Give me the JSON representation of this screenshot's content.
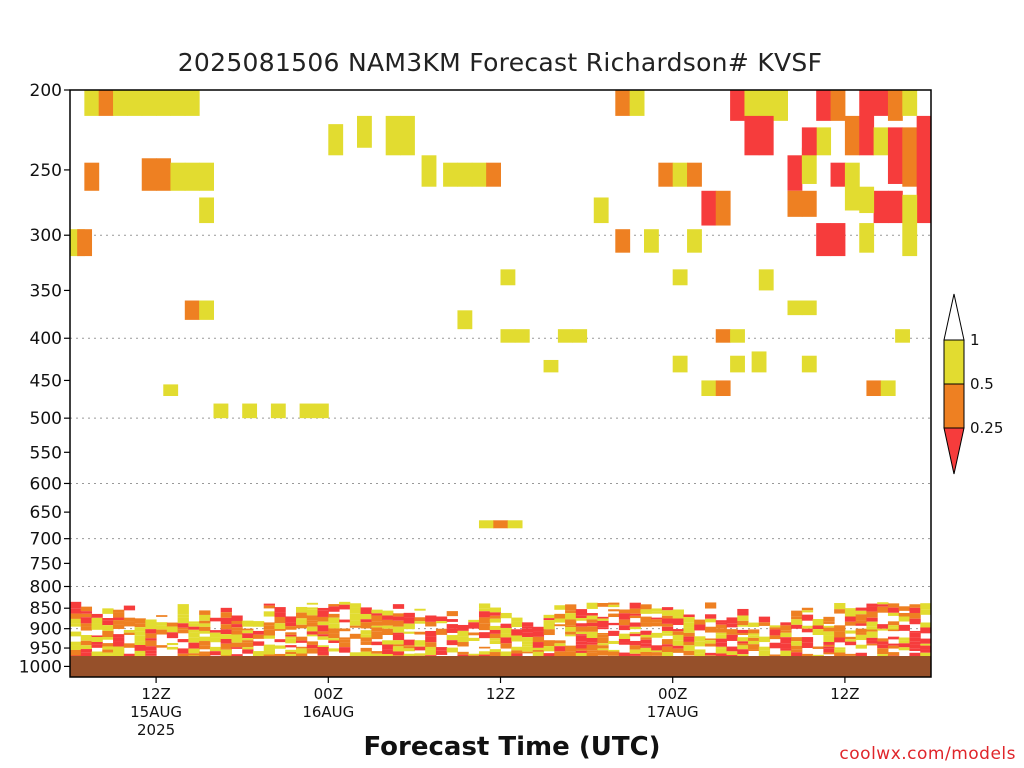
{
  "header": {
    "title": "2025081506 NAM3KM Forecast Richardson# KVSF",
    "xlabel": "Forecast Time (UTC)",
    "credit": "coolwx.com/models"
  },
  "chart_data": {
    "type": "heatmap",
    "title": "2025081506 NAM3KM Forecast Richardson# KVSF",
    "xlabel": "Forecast Time (UTC)",
    "ylabel": "",
    "y_ticks": [
      200,
      250,
      300,
      350,
      400,
      450,
      500,
      550,
      600,
      650,
      700,
      750,
      800,
      850,
      900,
      950,
      1000
    ],
    "y_gridlines": [
      300,
      400,
      500,
      600,
      700,
      800,
      900,
      1000
    ],
    "y_range": [
      200,
      1030
    ],
    "y_scale": "log (pressure, inverted)",
    "x_range_hours": [
      0,
      60
    ],
    "x_ticks": [
      {
        "hour": 6,
        "labels": [
          "12Z",
          "15AUG",
          "2025"
        ]
      },
      {
        "hour": 18,
        "labels": [
          "00Z",
          "16AUG"
        ]
      },
      {
        "hour": 30,
        "labels": [
          "12Z"
        ]
      },
      {
        "hour": 42,
        "labels": [
          "00Z",
          "17AUG"
        ]
      },
      {
        "hour": 54,
        "labels": [
          "12Z"
        ]
      }
    ],
    "ground_color": "#96502a",
    "colorbar": {
      "levels": [
        "1",
        "0.5",
        "0.25"
      ],
      "bands": [
        {
          "range": "< 0.25",
          "color": "#f63c3c"
        },
        {
          "range": "0.25 - 0.5",
          "color": "#ee8022"
        },
        {
          "range": "0.5 - 1",
          "color": "#e2dc30"
        },
        {
          "range": "> 1",
          "color": "#ffffff"
        }
      ]
    },
    "categories_legend": {
      "Y": "0.5-1",
      "O": "0.25-0.5",
      "R": "<0.25"
    },
    "cells": [
      {
        "h": 1.5,
        "p1": 200,
        "p2": 215,
        "c": "Y"
      },
      {
        "h": 2.5,
        "p1": 200,
        "p2": 215,
        "c": "O"
      },
      {
        "h": 3.5,
        "p1": 200,
        "p2": 215,
        "c": "Y"
      },
      {
        "h": 4.5,
        "p1": 200,
        "p2": 215,
        "c": "Y"
      },
      {
        "h": 5.5,
        "p1": 200,
        "p2": 215,
        "c": "Y"
      },
      {
        "h": 6.5,
        "p1": 200,
        "p2": 215,
        "c": "Y"
      },
      {
        "h": 7.5,
        "p1": 200,
        "p2": 215,
        "c": "Y"
      },
      {
        "h": 8.5,
        "p1": 200,
        "p2": 215,
        "c": "Y"
      },
      {
        "h": 1.5,
        "p1": 245,
        "p2": 265,
        "c": "O"
      },
      {
        "h": 5.5,
        "p1": 242,
        "p2": 265,
        "c": "O"
      },
      {
        "h": 6.5,
        "p1": 242,
        "p2": 265,
        "c": "O"
      },
      {
        "h": 7.5,
        "p1": 245,
        "p2": 265,
        "c": "Y"
      },
      {
        "h": 8.5,
        "p1": 245,
        "p2": 265,
        "c": "Y"
      },
      {
        "h": 9.5,
        "p1": 245,
        "p2": 265,
        "c": "Y"
      },
      {
        "h": 9.5,
        "p1": 270,
        "p2": 290,
        "c": "Y"
      },
      {
        "h": 0.5,
        "p1": 295,
        "p2": 318,
        "c": "Y"
      },
      {
        "h": 1.0,
        "p1": 295,
        "p2": 318,
        "c": "O"
      },
      {
        "h": 8.5,
        "p1": 360,
        "p2": 380,
        "c": "O"
      },
      {
        "h": 9.5,
        "p1": 360,
        "p2": 380,
        "c": "Y"
      },
      {
        "h": 7.0,
        "p1": 455,
        "p2": 470,
        "c": "Y"
      },
      {
        "h": 10.5,
        "p1": 480,
        "p2": 500,
        "c": "Y"
      },
      {
        "h": 12.5,
        "p1": 480,
        "p2": 500,
        "c": "Y"
      },
      {
        "h": 14.5,
        "p1": 480,
        "p2": 500,
        "c": "Y"
      },
      {
        "h": 16.5,
        "p1": 480,
        "p2": 500,
        "c": "Y"
      },
      {
        "h": 17.5,
        "p1": 480,
        "p2": 500,
        "c": "Y"
      },
      {
        "h": 18.5,
        "p1": 220,
        "p2": 240,
        "c": "Y"
      },
      {
        "h": 20.5,
        "p1": 215,
        "p2": 235,
        "c": "Y"
      },
      {
        "h": 22.5,
        "p1": 215,
        "p2": 240,
        "c": "Y"
      },
      {
        "h": 23.5,
        "p1": 215,
        "p2": 240,
        "c": "Y"
      },
      {
        "h": 25.0,
        "p1": 240,
        "p2": 262,
        "c": "Y"
      },
      {
        "h": 26.5,
        "p1": 245,
        "p2": 262,
        "c": "Y"
      },
      {
        "h": 27.5,
        "p1": 245,
        "p2": 262,
        "c": "Y"
      },
      {
        "h": 28.5,
        "p1": 245,
        "p2": 262,
        "c": "Y"
      },
      {
        "h": 29.5,
        "p1": 245,
        "p2": 262,
        "c": "O"
      },
      {
        "h": 27.5,
        "p1": 370,
        "p2": 390,
        "c": "Y"
      },
      {
        "h": 30.5,
        "p1": 330,
        "p2": 345,
        "c": "Y"
      },
      {
        "h": 30.5,
        "p1": 390,
        "p2": 405,
        "c": "Y"
      },
      {
        "h": 31.5,
        "p1": 390,
        "p2": 405,
        "c": "Y"
      },
      {
        "h": 33.5,
        "p1": 425,
        "p2": 440,
        "c": "Y"
      },
      {
        "h": 34.5,
        "p1": 390,
        "p2": 405,
        "c": "Y"
      },
      {
        "h": 35.5,
        "p1": 390,
        "p2": 405,
        "c": "Y"
      },
      {
        "h": 29.0,
        "p1": 665,
        "p2": 680,
        "c": "Y"
      },
      {
        "h": 30.0,
        "p1": 665,
        "p2": 680,
        "c": "O"
      },
      {
        "h": 31.0,
        "p1": 665,
        "p2": 680,
        "c": "Y"
      },
      {
        "h": 37.0,
        "p1": 270,
        "p2": 290,
        "c": "Y"
      },
      {
        "h": 38.5,
        "p1": 200,
        "p2": 215,
        "c": "O"
      },
      {
        "h": 39.5,
        "p1": 200,
        "p2": 215,
        "c": "Y"
      },
      {
        "h": 38.5,
        "p1": 295,
        "p2": 315,
        "c": "O"
      },
      {
        "h": 40.5,
        "p1": 295,
        "p2": 315,
        "c": "Y"
      },
      {
        "h": 41.5,
        "p1": 245,
        "p2": 262,
        "c": "O"
      },
      {
        "h": 42.5,
        "p1": 245,
        "p2": 262,
        "c": "Y"
      },
      {
        "h": 43.5,
        "p1": 245,
        "p2": 262,
        "c": "O"
      },
      {
        "h": 43.5,
        "p1": 295,
        "p2": 315,
        "c": "Y"
      },
      {
        "h": 42.5,
        "p1": 330,
        "p2": 345,
        "c": "Y"
      },
      {
        "h": 42.5,
        "p1": 420,
        "p2": 440,
        "c": "Y"
      },
      {
        "h": 44.5,
        "p1": 265,
        "p2": 292,
        "c": "R"
      },
      {
        "h": 45.5,
        "p1": 265,
        "p2": 292,
        "c": "O"
      },
      {
        "h": 46.5,
        "p1": 200,
        "p2": 218,
        "c": "R"
      },
      {
        "h": 47.5,
        "p1": 200,
        "p2": 218,
        "c": "Y"
      },
      {
        "h": 48.5,
        "p1": 200,
        "p2": 218,
        "c": "Y"
      },
      {
        "h": 49.5,
        "p1": 200,
        "p2": 218,
        "c": "Y"
      },
      {
        "h": 47.5,
        "p1": 215,
        "p2": 240,
        "c": "R"
      },
      {
        "h": 48.5,
        "p1": 215,
        "p2": 240,
        "c": "R"
      },
      {
        "h": 48.5,
        "p1": 330,
        "p2": 350,
        "c": "Y"
      },
      {
        "h": 45.5,
        "p1": 390,
        "p2": 405,
        "c": "O"
      },
      {
        "h": 46.5,
        "p1": 390,
        "p2": 405,
        "c": "Y"
      },
      {
        "h": 44.5,
        "p1": 450,
        "p2": 470,
        "c": "Y"
      },
      {
        "h": 45.5,
        "p1": 450,
        "p2": 470,
        "c": "O"
      },
      {
        "h": 46.5,
        "p1": 420,
        "p2": 440,
        "c": "Y"
      },
      {
        "h": 48.0,
        "p1": 415,
        "p2": 440,
        "c": "Y"
      },
      {
        "h": 50.5,
        "p1": 240,
        "p2": 265,
        "c": "R"
      },
      {
        "h": 50.5,
        "p1": 265,
        "p2": 285,
        "c": "O"
      },
      {
        "h": 51.5,
        "p1": 265,
        "p2": 285,
        "c": "O"
      },
      {
        "h": 51.5,
        "p1": 235,
        "p2": 260,
        "c": "Y"
      },
      {
        "h": 52.5,
        "p1": 200,
        "p2": 218,
        "c": "R"
      },
      {
        "h": 53.5,
        "p1": 200,
        "p2": 218,
        "c": "O"
      },
      {
        "h": 52.5,
        "p1": 222,
        "p2": 240,
        "c": "Y"
      },
      {
        "h": 51.5,
        "p1": 222,
        "p2": 240,
        "c": "R"
      },
      {
        "h": 53.5,
        "p1": 245,
        "p2": 262,
        "c": "R"
      },
      {
        "h": 54.5,
        "p1": 245,
        "p2": 280,
        "c": "Y"
      },
      {
        "h": 52.5,
        "p1": 290,
        "p2": 318,
        "c": "R"
      },
      {
        "h": 53.5,
        "p1": 290,
        "p2": 318,
        "c": "R"
      },
      {
        "h": 50.5,
        "p1": 360,
        "p2": 375,
        "c": "Y"
      },
      {
        "h": 51.5,
        "p1": 360,
        "p2": 375,
        "c": "Y"
      },
      {
        "h": 51.5,
        "p1": 420,
        "p2": 440,
        "c": "Y"
      },
      {
        "h": 54.5,
        "p1": 215,
        "p2": 240,
        "c": "O"
      },
      {
        "h": 55.5,
        "p1": 200,
        "p2": 240,
        "c": "R"
      },
      {
        "h": 56.5,
        "p1": 200,
        "p2": 215,
        "c": "R"
      },
      {
        "h": 57.5,
        "p1": 200,
        "p2": 218,
        "c": "O"
      },
      {
        "h": 58.5,
        "p1": 200,
        "p2": 215,
        "c": "Y"
      },
      {
        "h": 56.5,
        "p1": 222,
        "p2": 240,
        "c": "Y"
      },
      {
        "h": 57.5,
        "p1": 222,
        "p2": 260,
        "c": "R"
      },
      {
        "h": 58.5,
        "p1": 222,
        "p2": 262,
        "c": "O"
      },
      {
        "h": 59.5,
        "p1": 215,
        "p2": 290,
        "c": "R"
      },
      {
        "h": 56.5,
        "p1": 265,
        "p2": 290,
        "c": "R"
      },
      {
        "h": 57.5,
        "p1": 265,
        "p2": 290,
        "c": "R"
      },
      {
        "h": 55.5,
        "p1": 262,
        "p2": 282,
        "c": "Y"
      },
      {
        "h": 58.5,
        "p1": 268,
        "p2": 318,
        "c": "Y"
      },
      {
        "h": 55.5,
        "p1": 290,
        "p2": 315,
        "c": "Y"
      },
      {
        "h": 56.0,
        "p1": 450,
        "p2": 470,
        "c": "O"
      },
      {
        "h": 57.0,
        "p1": 450,
        "p2": 470,
        "c": "Y"
      },
      {
        "h": 58.0,
        "p1": 390,
        "p2": 405,
        "c": "Y"
      }
    ],
    "boundary_layer": {
      "p_top_range": [
        810,
        1000
      ],
      "pattern": "streaky mix of red, orange and yellow between ~830 and ~990 hPa across all hours",
      "colors": [
        "R",
        "O",
        "Y"
      ]
    }
  }
}
